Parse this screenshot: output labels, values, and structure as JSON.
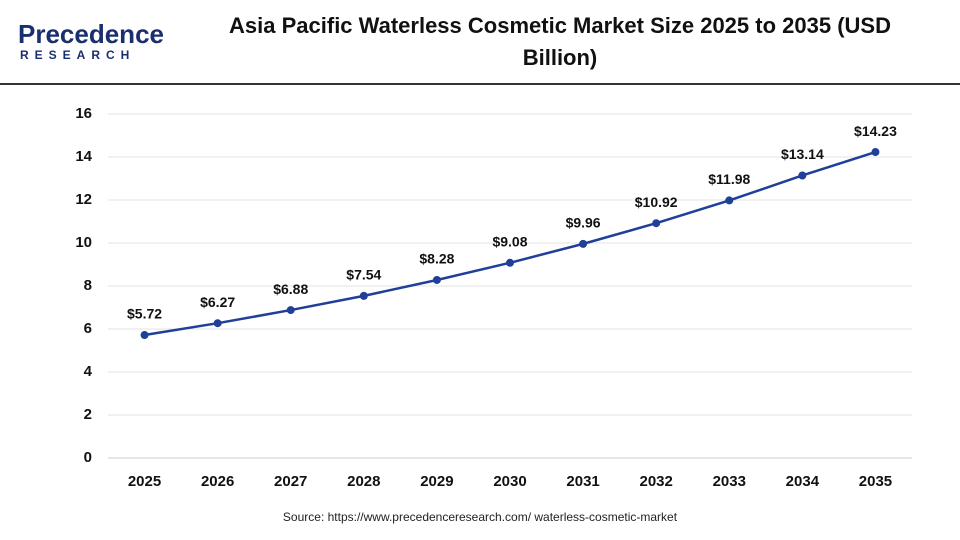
{
  "logo": {
    "name": "Precedence",
    "tagline": "RESEARCH"
  },
  "chart_data": {
    "type": "line",
    "title": "Asia Pacific Waterless Cosmetic Market Size 2025 to 2035 (USD Billion)",
    "categories": [
      "2025",
      "2026",
      "2027",
      "2028",
      "2029",
      "2030",
      "2031",
      "2032",
      "2033",
      "2034",
      "2035"
    ],
    "values": [
      5.72,
      6.27,
      6.88,
      7.54,
      8.28,
      9.08,
      9.96,
      10.92,
      11.98,
      13.14,
      14.23
    ],
    "value_labels": [
      "$5.72",
      "$6.27",
      "$6.88",
      "$7.54",
      "$8.28",
      "$9.08",
      "$9.96",
      "$10.92",
      "$11.98",
      "$13.14",
      "$14.23"
    ],
    "color": "#1f3f99",
    "ylim": [
      0,
      16
    ],
    "yticks": [
      0,
      2,
      4,
      6,
      8,
      10,
      12,
      14,
      16
    ],
    "grid": true,
    "source": "Source: https://www.precedenceresearch.com/ waterless-cosmetic-market"
  }
}
